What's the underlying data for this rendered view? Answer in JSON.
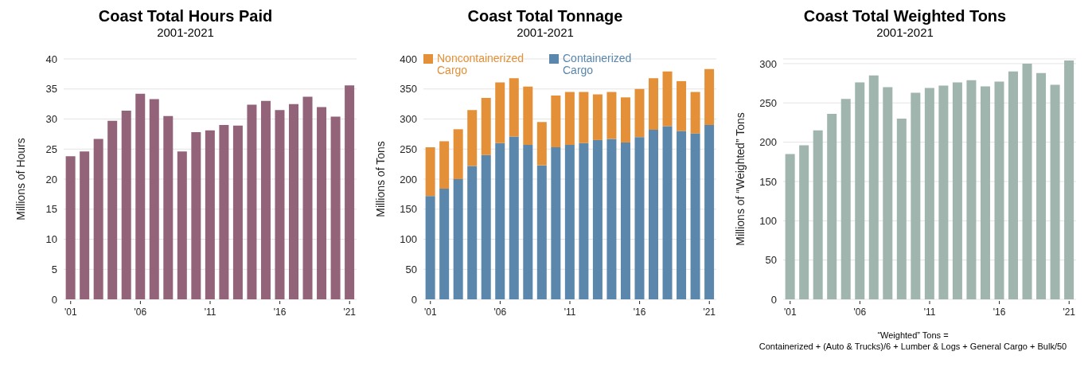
{
  "chart_data": [
    {
      "type": "bar",
      "title": "Coast Total Hours Paid",
      "subtitle": "2001-2021",
      "ylabel": "Millions of Hours",
      "categories": [
        "'01",
        null,
        null,
        null,
        null,
        "'06",
        null,
        null,
        null,
        null,
        "'11",
        null,
        null,
        null,
        null,
        "'16",
        null,
        null,
        null,
        null,
        "'21"
      ],
      "values": [
        23.8,
        24.6,
        26.7,
        29.7,
        31.4,
        34.2,
        33.3,
        30.5,
        24.6,
        27.8,
        28.1,
        29.0,
        28.9,
        32.4,
        33.0,
        31.5,
        32.5,
        33.7,
        32.0,
        30.4,
        35.6
      ],
      "color": "#936379",
      "ylim": [
        0,
        40
      ],
      "yticks": [
        0,
        5,
        10,
        15,
        20,
        25,
        30,
        35,
        40
      ],
      "grid": "y"
    },
    {
      "type": "bar",
      "title": "Coast Total Tonnage",
      "subtitle": "2001-2021",
      "ylabel": "Millions of Tons",
      "categories": [
        "'01",
        null,
        null,
        null,
        null,
        "'06",
        null,
        null,
        null,
        null,
        "'11",
        null,
        null,
        null,
        null,
        "'16",
        null,
        null,
        null,
        null,
        "'21"
      ],
      "stacked": true,
      "series": [
        {
          "name": "Containerized Cargo",
          "color": "#5a87ab",
          "values": [
            172,
            184,
            200,
            222,
            240,
            260,
            271,
            257,
            223,
            253,
            257,
            260,
            265,
            267,
            261,
            270,
            282,
            288,
            280,
            276,
            290
          ]
        },
        {
          "name": "Noncontainerized Cargo",
          "color": "#e39038",
          "values": [
            81,
            79,
            83,
            93,
            95,
            101,
            97,
            97,
            72,
            86,
            88,
            85,
            76,
            78,
            75,
            80,
            86,
            91,
            83,
            69,
            93
          ]
        }
      ],
      "ylim": [
        0,
        400
      ],
      "yticks": [
        0,
        50,
        100,
        150,
        200,
        250,
        300,
        350,
        400
      ],
      "grid": "y",
      "legend": "top left"
    },
    {
      "type": "bar",
      "title": "Coast Total Weighted Tons",
      "subtitle": "2001-2021",
      "ylabel": "Millions of “Weighted” Tons",
      "categories": [
        "'01",
        null,
        null,
        null,
        null,
        "'06",
        null,
        null,
        null,
        null,
        "'11",
        null,
        null,
        null,
        null,
        "'16",
        null,
        null,
        null,
        null,
        "'21"
      ],
      "values": [
        185,
        196,
        215,
        236,
        255,
        276,
        285,
        270,
        230,
        263,
        269,
        272,
        276,
        279,
        271,
        277,
        290,
        300,
        288,
        273,
        304
      ],
      "color": "#9fb5ae",
      "ylim": [
        0,
        306
      ],
      "yticks": [
        0,
        50,
        100,
        150,
        200,
        250,
        300
      ],
      "grid": "y",
      "annotations": [
        "“Weighted” Tons =",
        "Containerized + (Auto & Trucks)/6 + Lumber & Logs + General Cargo + Bulk/50"
      ]
    }
  ]
}
